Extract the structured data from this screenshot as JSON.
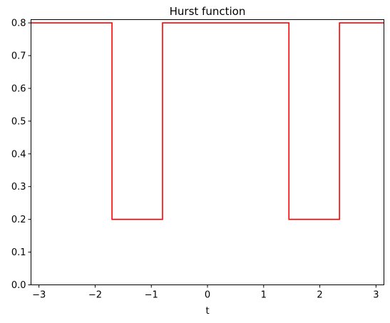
{
  "chart_data": {
    "type": "line",
    "title": "Hurst function",
    "xlabel": "t",
    "ylabel": "",
    "xlim": [
      -3.14159,
      3.14159
    ],
    "ylim": [
      0.0,
      0.81
    ],
    "xticks": [
      -3,
      -2,
      -1,
      0,
      1,
      2,
      3
    ],
    "xtick_labels": [
      "−3",
      "−2",
      "−1",
      "0",
      "1",
      "2",
      "3"
    ],
    "yticks": [
      0.0,
      0.1,
      0.2,
      0.3,
      0.4,
      0.5,
      0.6,
      0.7,
      0.8
    ],
    "ytick_labels": [
      "0.0",
      "0.1",
      "0.2",
      "0.3",
      "0.4",
      "0.5",
      "0.6",
      "0.7",
      "0.8"
    ],
    "grid": false,
    "series": [
      {
        "color": "#ff0000",
        "step": true,
        "x": [
          -3.14159,
          -1.7,
          -1.7,
          -0.8,
          -0.8,
          1.45,
          1.45,
          2.35,
          2.35,
          3.14159
        ],
        "y": [
          0.8,
          0.8,
          0.2,
          0.2,
          0.8,
          0.8,
          0.2,
          0.2,
          0.8,
          0.8
        ]
      }
    ]
  }
}
